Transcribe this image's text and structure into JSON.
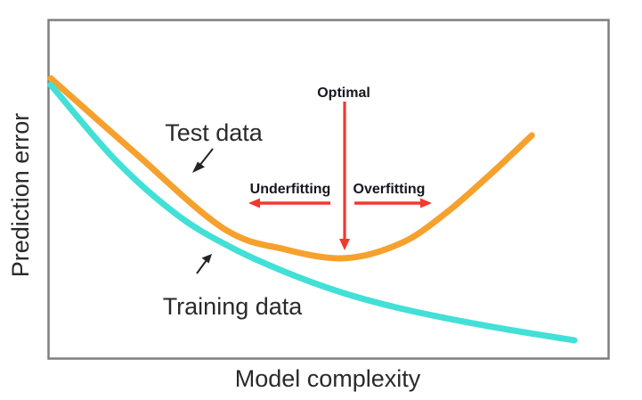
{
  "chart_data": {
    "type": "line",
    "title": "",
    "xlabel": "Model complexity",
    "ylabel": "Prediction error",
    "x_axis": {
      "numeric": false,
      "range": [
        0,
        1
      ],
      "ticks": []
    },
    "y_axis": {
      "numeric": false,
      "range": [
        0,
        1
      ],
      "ticks": []
    },
    "grid": false,
    "legend": "inline-labels",
    "plot_border_color": "#7f7f7f",
    "series": [
      {
        "name": "Test data",
        "color": "#F6A12E",
        "shape": "u-curve (error falls then rises, minimum at optimal complexity)",
        "points": [
          [
            0.004,
            0.827
          ],
          [
            0.152,
            0.611
          ],
          [
            0.311,
            0.386
          ],
          [
            0.422,
            0.323
          ],
          [
            0.53,
            0.297
          ],
          [
            0.629,
            0.341
          ],
          [
            0.708,
            0.428
          ],
          [
            0.788,
            0.543
          ],
          [
            0.863,
            0.659
          ]
        ]
      },
      {
        "name": "Training data",
        "color": "#42E0D6",
        "shape": "monotonically decreasing, flattening",
        "points": [
          [
            0.004,
            0.808
          ],
          [
            0.12,
            0.585
          ],
          [
            0.231,
            0.423
          ],
          [
            0.327,
            0.328
          ],
          [
            0.422,
            0.257
          ],
          [
            0.518,
            0.199
          ],
          [
            0.613,
            0.155
          ],
          [
            0.708,
            0.121
          ],
          [
            0.82,
            0.087
          ],
          [
            0.939,
            0.055
          ]
        ]
      }
    ],
    "annotations": {
      "optimal": {
        "label": "Optimal",
        "x": 0.528,
        "arrow": "down-to-test-curve-minimum",
        "color": "#F1392C"
      },
      "underfitting": {
        "label": "Underfitting",
        "region": "left of optimal",
        "arrow": "points-left",
        "color": "#F1392C"
      },
      "overfitting": {
        "label": "Overfitting",
        "region": "right of optimal",
        "arrow": "points-right",
        "color": "#F1392C"
      }
    }
  }
}
